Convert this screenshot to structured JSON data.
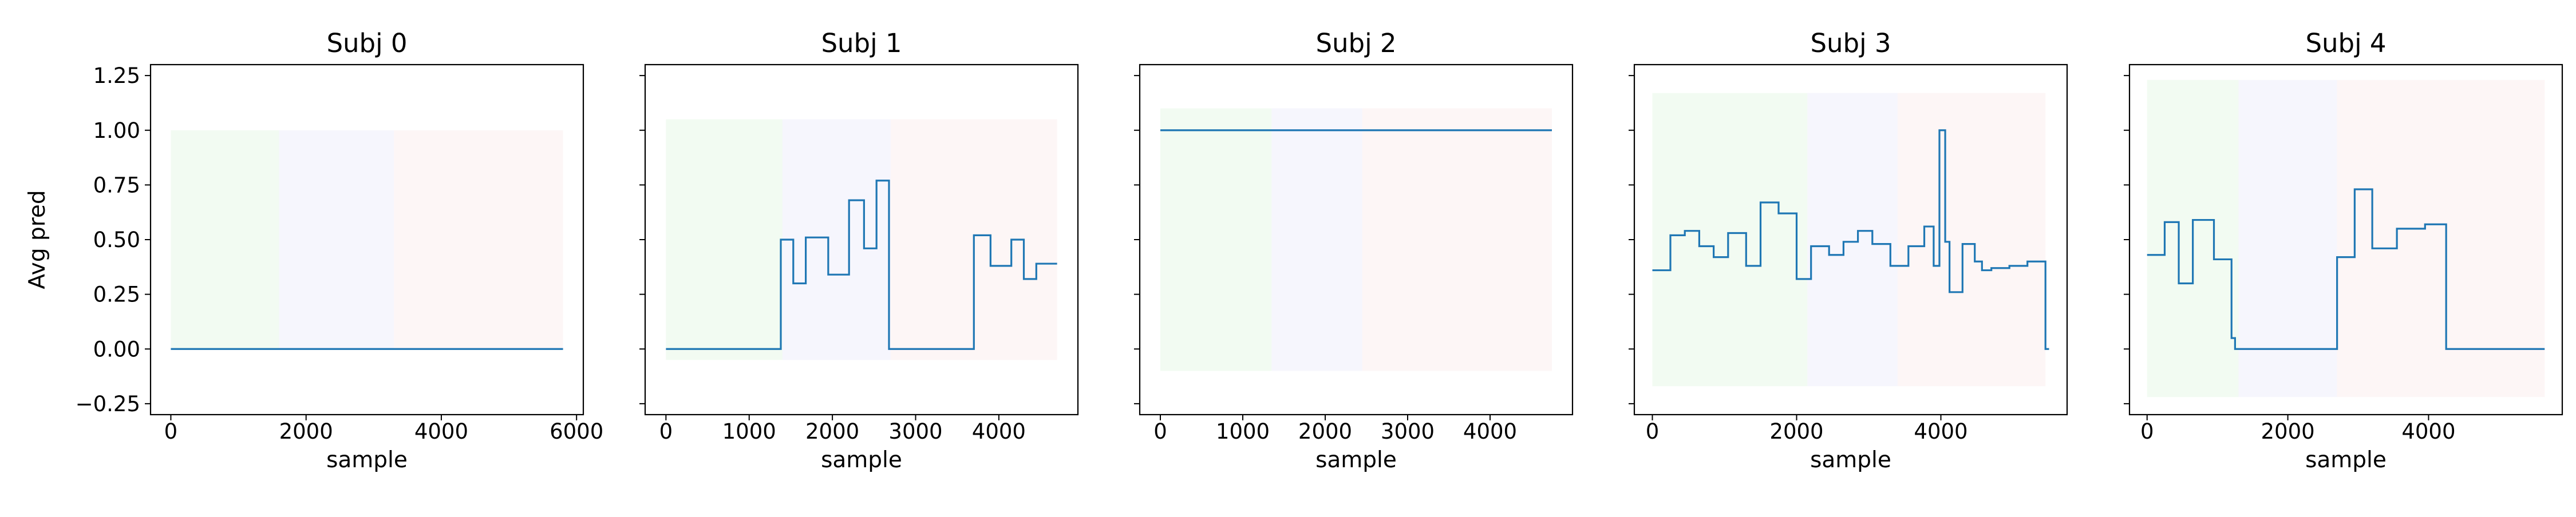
{
  "figure": {
    "ylabel": "Avg pred",
    "line_color": "#1f77b4",
    "region_colors": [
      "#e8f8e8",
      "#eeeefb",
      "#fbefef"
    ],
    "region_opacity": 0.55
  },
  "chart_data": [
    {
      "type": "line",
      "title": "Subj 0",
      "xlabel": "sample",
      "ylabel": "Avg pred",
      "xlim": [
        -300,
        6100
      ],
      "ylim": [
        -0.3,
        1.3
      ],
      "xticks": [
        0,
        2000,
        4000,
        6000
      ],
      "yticks": [
        -0.25,
        0.0,
        0.25,
        0.5,
        0.75,
        1.0,
        1.25
      ],
      "xtick_labels": [
        "0",
        "2000",
        "4000",
        "6000"
      ],
      "ytick_labels": [
        "−0.25",
        "0.00",
        "0.25",
        "0.50",
        "0.75",
        "1.00",
        "1.25"
      ],
      "show_ytick_labels": true,
      "grid": false,
      "regions": [
        {
          "x0": 0,
          "x1": 1600,
          "y0": 0.0,
          "y1": 1.0
        },
        {
          "x0": 1600,
          "x1": 3300,
          "y0": 0.0,
          "y1": 1.0
        },
        {
          "x0": 3300,
          "x1": 5800,
          "y0": 0.0,
          "y1": 1.0
        }
      ],
      "step": true,
      "x": [
        0,
        5800
      ],
      "y": [
        0.0,
        0.0
      ]
    },
    {
      "type": "line",
      "title": "Subj 1",
      "xlabel": "sample",
      "ylabel": "",
      "xlim": [
        -250,
        4950
      ],
      "ylim": [
        -0.3,
        1.3
      ],
      "xticks": [
        0,
        1000,
        2000,
        3000,
        4000
      ],
      "yticks": [
        -0.25,
        0.0,
        0.25,
        0.5,
        0.75,
        1.0,
        1.25
      ],
      "xtick_labels": [
        "0",
        "1000",
        "2000",
        "3000",
        "4000"
      ],
      "ytick_labels": [
        "−0.25",
        "0.00",
        "0.25",
        "0.50",
        "0.75",
        "1.00",
        "1.25"
      ],
      "show_ytick_labels": false,
      "grid": false,
      "regions": [
        {
          "x0": 0,
          "x1": 1400,
          "y0": -0.05,
          "y1": 1.05
        },
        {
          "x0": 1400,
          "x1": 2700,
          "y0": -0.05,
          "y1": 1.05
        },
        {
          "x0": 2700,
          "x1": 4700,
          "y0": -0.05,
          "y1": 1.05
        }
      ],
      "step": true,
      "x": [
        0,
        1380,
        1530,
        1680,
        1950,
        2200,
        2380,
        2530,
        2680,
        3700,
        3900,
        4150,
        4300,
        4450,
        4700
      ],
      "y": [
        0.0,
        0.5,
        0.3,
        0.51,
        0.34,
        0.68,
        0.46,
        0.77,
        0.0,
        0.52,
        0.38,
        0.5,
        0.32,
        0.39,
        0.39
      ]
    },
    {
      "type": "line",
      "title": "Subj 2",
      "xlabel": "sample",
      "ylabel": "",
      "xlim": [
        -250,
        5000
      ],
      "ylim": [
        -0.3,
        1.3
      ],
      "xticks": [
        0,
        1000,
        2000,
        3000,
        4000
      ],
      "yticks": [
        -0.25,
        0.0,
        0.25,
        0.5,
        0.75,
        1.0,
        1.25
      ],
      "xtick_labels": [
        "0",
        "1000",
        "2000",
        "3000",
        "4000"
      ],
      "ytick_labels": [
        "−0.25",
        "0.00",
        "0.25",
        "0.50",
        "0.75",
        "1.00",
        "1.25"
      ],
      "show_ytick_labels": false,
      "grid": false,
      "regions": [
        {
          "x0": 0,
          "x1": 1350,
          "y0": -0.1,
          "y1": 1.1
        },
        {
          "x0": 1350,
          "x1": 2450,
          "y0": -0.1,
          "y1": 1.1
        },
        {
          "x0": 2450,
          "x1": 4750,
          "y0": -0.1,
          "y1": 1.1
        }
      ],
      "step": true,
      "x": [
        0,
        4750
      ],
      "y": [
        1.0,
        1.0
      ]
    },
    {
      "type": "line",
      "title": "Subj 3",
      "xlabel": "sample",
      "ylabel": "",
      "xlim": [
        -250,
        5750
      ],
      "ylim": [
        -0.3,
        1.3
      ],
      "xticks": [
        0,
        2000,
        4000
      ],
      "yticks": [
        -0.25,
        0.0,
        0.25,
        0.5,
        0.75,
        1.0,
        1.25
      ],
      "xtick_labels": [
        "0",
        "2000",
        "4000"
      ],
      "ytick_labels": [
        "−0.25",
        "0.00",
        "0.25",
        "0.50",
        "0.75",
        "1.00",
        "1.25"
      ],
      "show_ytick_labels": false,
      "grid": false,
      "regions": [
        {
          "x0": 0,
          "x1": 2150,
          "y0": -0.17,
          "y1": 1.17
        },
        {
          "x0": 2150,
          "x1": 3400,
          "y0": -0.17,
          "y1": 1.17
        },
        {
          "x0": 3400,
          "x1": 5450,
          "y0": -0.17,
          "y1": 1.17
        }
      ],
      "step": true,
      "x": [
        0,
        250,
        450,
        650,
        850,
        1050,
        1300,
        1500,
        1750,
        2000,
        2200,
        2450,
        2650,
        2850,
        3050,
        3300,
        3550,
        3770,
        3900,
        3980,
        4060,
        4120,
        4300,
        4470,
        4570,
        4700,
        4950,
        5200,
        5450,
        5500
      ],
      "y": [
        0.36,
        0.52,
        0.54,
        0.47,
        0.42,
        0.53,
        0.38,
        0.67,
        0.62,
        0.32,
        0.47,
        0.43,
        0.49,
        0.54,
        0.48,
        0.38,
        0.47,
        0.56,
        0.38,
        1.0,
        0.49,
        0.26,
        0.48,
        0.4,
        0.36,
        0.37,
        0.38,
        0.4,
        0.0,
        0.0
      ]
    },
    {
      "type": "line",
      "title": "Subj 4",
      "xlabel": "sample",
      "ylabel": "",
      "xlim": [
        -250,
        5900
      ],
      "ylim": [
        -0.3,
        1.3
      ],
      "xticks": [
        0,
        2000,
        4000
      ],
      "yticks": [
        -0.25,
        0.0,
        0.25,
        0.5,
        0.75,
        1.0,
        1.25
      ],
      "xtick_labels": [
        "0",
        "2000",
        "4000"
      ],
      "ytick_labels": [
        "−0.25",
        "0.00",
        "0.25",
        "0.50",
        "0.75",
        "1.00",
        "1.25"
      ],
      "show_ytick_labels": false,
      "grid": false,
      "regions": [
        {
          "x0": 0,
          "x1": 1300,
          "y0": -0.22,
          "y1": 1.23
        },
        {
          "x0": 1300,
          "x1": 2700,
          "y0": -0.22,
          "y1": 1.23
        },
        {
          "x0": 2700,
          "x1": 5650,
          "y0": -0.22,
          "y1": 1.23
        }
      ],
      "step": true,
      "x": [
        0,
        250,
        450,
        650,
        950,
        1200,
        1250,
        1300,
        2700,
        2950,
        3200,
        3550,
        3950,
        4250,
        5650
      ],
      "y": [
        0.43,
        0.58,
        0.3,
        0.59,
        0.41,
        0.05,
        0.0,
        0.0,
        0.42,
        0.73,
        0.46,
        0.55,
        0.57,
        0.0,
        0.0
      ]
    }
  ]
}
